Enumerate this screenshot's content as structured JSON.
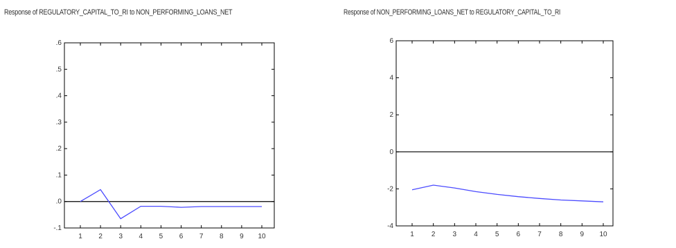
{
  "chart_data": [
    {
      "type": "line",
      "title": "Response of REGULATORY_CAPITAL_TO_RI to NON_PERFORMING_LOANS_NET",
      "x": [
        1,
        2,
        3,
        4,
        5,
        6,
        7,
        8,
        9,
        10
      ],
      "x_tick_labels": [
        "1",
        "2",
        "3",
        "4",
        "5",
        "6",
        "7",
        "8",
        "9",
        "10"
      ],
      "y_tick_values": [
        -0.1,
        0.0,
        0.1,
        0.2,
        0.3,
        0.4,
        0.5,
        0.6
      ],
      "y_tick_labels": [
        "-.1",
        ".0",
        ".1",
        ".2",
        ".3",
        ".4",
        ".5",
        ".6"
      ],
      "ylim": [
        -0.1,
        0.6
      ],
      "zero_line": true,
      "series": [
        {
          "values": [
            0.0,
            0.045,
            -0.065,
            -0.018,
            -0.018,
            -0.022,
            -0.019,
            -0.019,
            -0.019,
            -0.019
          ]
        }
      ],
      "colors": {
        "series": "#4a4aff",
        "zero_line": "#000000",
        "frame": "#000000"
      }
    },
    {
      "type": "line",
      "title": "Response of NON_PERFORMING_LOANS_NET to REGULATORY_CAPITAL_TO_RI",
      "x": [
        1,
        2,
        3,
        4,
        5,
        6,
        7,
        8,
        9,
        10
      ],
      "x_tick_labels": [
        "1",
        "2",
        "3",
        "4",
        "5",
        "6",
        "7",
        "8",
        "9",
        "10"
      ],
      "y_tick_values": [
        -4,
        -2,
        0,
        2,
        4,
        6
      ],
      "y_tick_labels": [
        "-4",
        "-2",
        "0",
        "2",
        "4",
        "6"
      ],
      "ylim": [
        -4,
        6
      ],
      "zero_line": true,
      "series": [
        {
          "values": [
            -2.05,
            -1.8,
            -1.95,
            -2.15,
            -2.3,
            -2.42,
            -2.52,
            -2.6,
            -2.65,
            -2.7
          ]
        }
      ],
      "colors": {
        "series": "#4a4aff",
        "zero_line": "#000000",
        "frame": "#000000"
      }
    }
  ]
}
